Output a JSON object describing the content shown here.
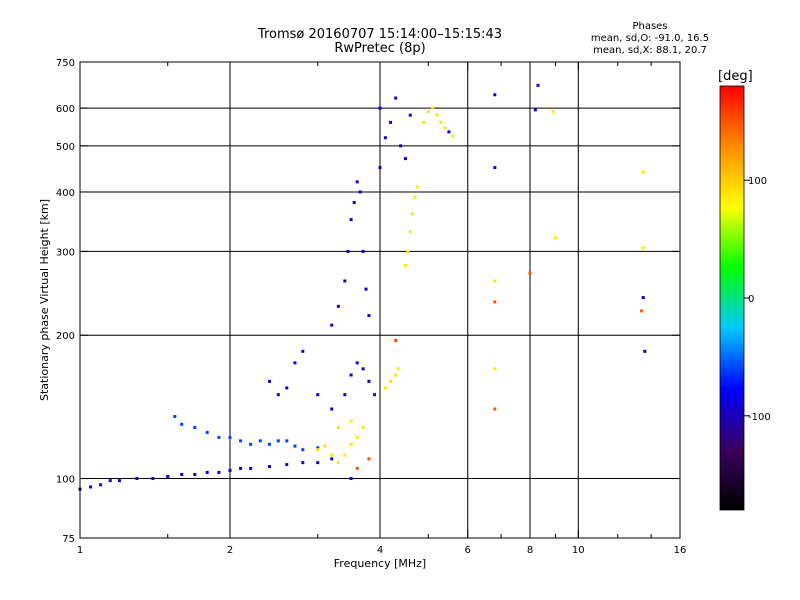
{
  "figure": {
    "title_line1": "Tromsø 20160707 15:14:00–15:15:43",
    "title_line2": "RwPretec (8p)",
    "phases_title": "Phases",
    "phases_line1": "mean, sd,O:  -91.0, 16.5",
    "phases_line2": "mean, sd,X:   88.1, 20.7"
  },
  "chart_data": {
    "type": "scatter",
    "xlabel": "Frequency [MHz]",
    "ylabel": "Stationary phase Virtual Height [km]",
    "x_scale": "log",
    "y_scale": "log",
    "xlim": [
      1,
      16
    ],
    "ylim": [
      75,
      750
    ],
    "x_ticks": [
      1,
      2,
      4,
      6,
      8,
      10,
      16
    ],
    "x_tick_labels": [
      "1",
      "2",
      "4",
      "6",
      "8",
      "10",
      "16"
    ],
    "x_minor_ticks": [
      1.5,
      3,
      5,
      7,
      9,
      12,
      14
    ],
    "x_gridlines": [
      2,
      4,
      6,
      8,
      10
    ],
    "y_ticks": [
      75,
      100,
      200,
      300,
      400,
      500,
      600,
      750
    ],
    "y_tick_labels": [
      "75",
      "100",
      "200",
      "300",
      "400",
      "500",
      "600",
      "750"
    ],
    "y_gridlines": [
      100,
      200,
      300,
      400,
      500,
      600
    ],
    "grid": true,
    "colorbar": {
      "label": "[deg]",
      "range": [
        -180,
        180
      ],
      "ticks": [
        100,
        0,
        -100
      ],
      "tick_labels": [
        "100",
        "0",
        "-100"
      ],
      "colormap": [
        "#000000",
        "#3a0060",
        "#0000ff",
        "#00c8ff",
        "#00ff00",
        "#ffff00",
        "#ff8c00",
        "#ff0000"
      ]
    },
    "series": [
      {
        "role": "O-mode trace (about -91 deg)",
        "phase": -91,
        "points": [
          [
            1.0,
            95
          ],
          [
            1.05,
            96
          ],
          [
            1.1,
            97
          ],
          [
            1.15,
            99
          ],
          [
            1.2,
            99
          ],
          [
            1.3,
            100
          ],
          [
            1.4,
            100
          ],
          [
            1.5,
            101
          ],
          [
            1.6,
            102
          ],
          [
            1.7,
            102
          ],
          [
            1.8,
            103
          ],
          [
            1.9,
            103
          ],
          [
            2.0,
            104
          ],
          [
            2.1,
            105
          ],
          [
            2.2,
            105
          ],
          [
            2.4,
            106
          ],
          [
            2.6,
            107
          ],
          [
            2.8,
            108
          ],
          [
            3.0,
            108
          ],
          [
            3.2,
            110
          ],
          [
            3.5,
            100
          ],
          [
            2.4,
            160
          ],
          [
            2.5,
            150
          ],
          [
            2.6,
            155
          ],
          [
            2.7,
            175
          ],
          [
            2.8,
            185
          ],
          [
            3.0,
            150
          ],
          [
            3.2,
            140
          ],
          [
            3.4,
            150
          ],
          [
            3.5,
            165
          ],
          [
            3.6,
            175
          ],
          [
            3.7,
            170
          ],
          [
            3.8,
            160
          ],
          [
            3.9,
            150
          ],
          [
            3.2,
            210
          ],
          [
            3.3,
            230
          ],
          [
            3.4,
            260
          ],
          [
            3.45,
            300
          ],
          [
            3.5,
            350
          ],
          [
            3.55,
            380
          ],
          [
            3.6,
            420
          ],
          [
            3.65,
            400
          ],
          [
            3.7,
            300
          ],
          [
            3.75,
            250
          ],
          [
            3.8,
            220
          ],
          [
            4.0,
            450
          ],
          [
            4.0,
            600
          ],
          [
            4.1,
            520
          ],
          [
            4.2,
            560
          ],
          [
            4.3,
            630
          ],
          [
            4.4,
            500
          ],
          [
            4.5,
            470
          ],
          [
            4.6,
            580
          ],
          [
            5.5,
            535
          ],
          [
            6.8,
            640
          ],
          [
            6.8,
            450
          ],
          [
            8.3,
            670
          ],
          [
            8.2,
            595
          ],
          [
            13.5,
            240
          ],
          [
            13.6,
            185
          ]
        ]
      },
      {
        "role": "low-frequency echoes (about -60 deg)",
        "phase": -60,
        "points": [
          [
            1.55,
            135
          ],
          [
            1.6,
            130
          ],
          [
            1.7,
            128
          ],
          [
            1.8,
            125
          ],
          [
            1.9,
            122
          ],
          [
            2.0,
            122
          ],
          [
            2.1,
            120
          ],
          [
            2.2,
            118
          ],
          [
            2.3,
            120
          ],
          [
            2.4,
            118
          ],
          [
            2.5,
            120
          ],
          [
            2.6,
            120
          ],
          [
            2.7,
            117
          ],
          [
            2.8,
            115
          ],
          [
            3.0,
            116
          ]
        ]
      },
      {
        "role": "X-mode trace (about +88 deg)",
        "phase": 88,
        "points": [
          [
            3.0,
            115
          ],
          [
            3.1,
            117
          ],
          [
            3.2,
            112
          ],
          [
            3.3,
            108
          ],
          [
            3.4,
            112
          ],
          [
            3.5,
            118
          ],
          [
            3.6,
            122
          ],
          [
            3.7,
            128
          ],
          [
            3.3,
            128
          ],
          [
            3.5,
            132
          ],
          [
            4.1,
            155
          ],
          [
            4.2,
            160
          ],
          [
            4.3,
            165
          ],
          [
            4.35,
            170
          ],
          [
            4.5,
            280
          ],
          [
            4.55,
            300
          ],
          [
            4.6,
            330
          ],
          [
            4.65,
            360
          ],
          [
            4.7,
            390
          ],
          [
            4.75,
            410
          ],
          [
            4.9,
            560
          ],
          [
            5.0,
            590
          ],
          [
            5.1,
            600
          ],
          [
            5.2,
            580
          ],
          [
            5.3,
            560
          ],
          [
            5.4,
            545
          ],
          [
            5.6,
            525
          ],
          [
            8.9,
            590
          ],
          [
            9.0,
            320
          ],
          [
            6.8,
            260
          ],
          [
            6.8,
            170
          ],
          [
            13.5,
            440
          ],
          [
            13.5,
            305
          ]
        ]
      },
      {
        "role": "scattered red echoes (about +150 deg)",
        "phase": 150,
        "points": [
          [
            3.6,
            105
          ],
          [
            3.8,
            110
          ],
          [
            4.3,
            195
          ],
          [
            6.8,
            235
          ],
          [
            6.8,
            140
          ],
          [
            8.0,
            270
          ],
          [
            13.4,
            225
          ]
        ]
      }
    ]
  }
}
